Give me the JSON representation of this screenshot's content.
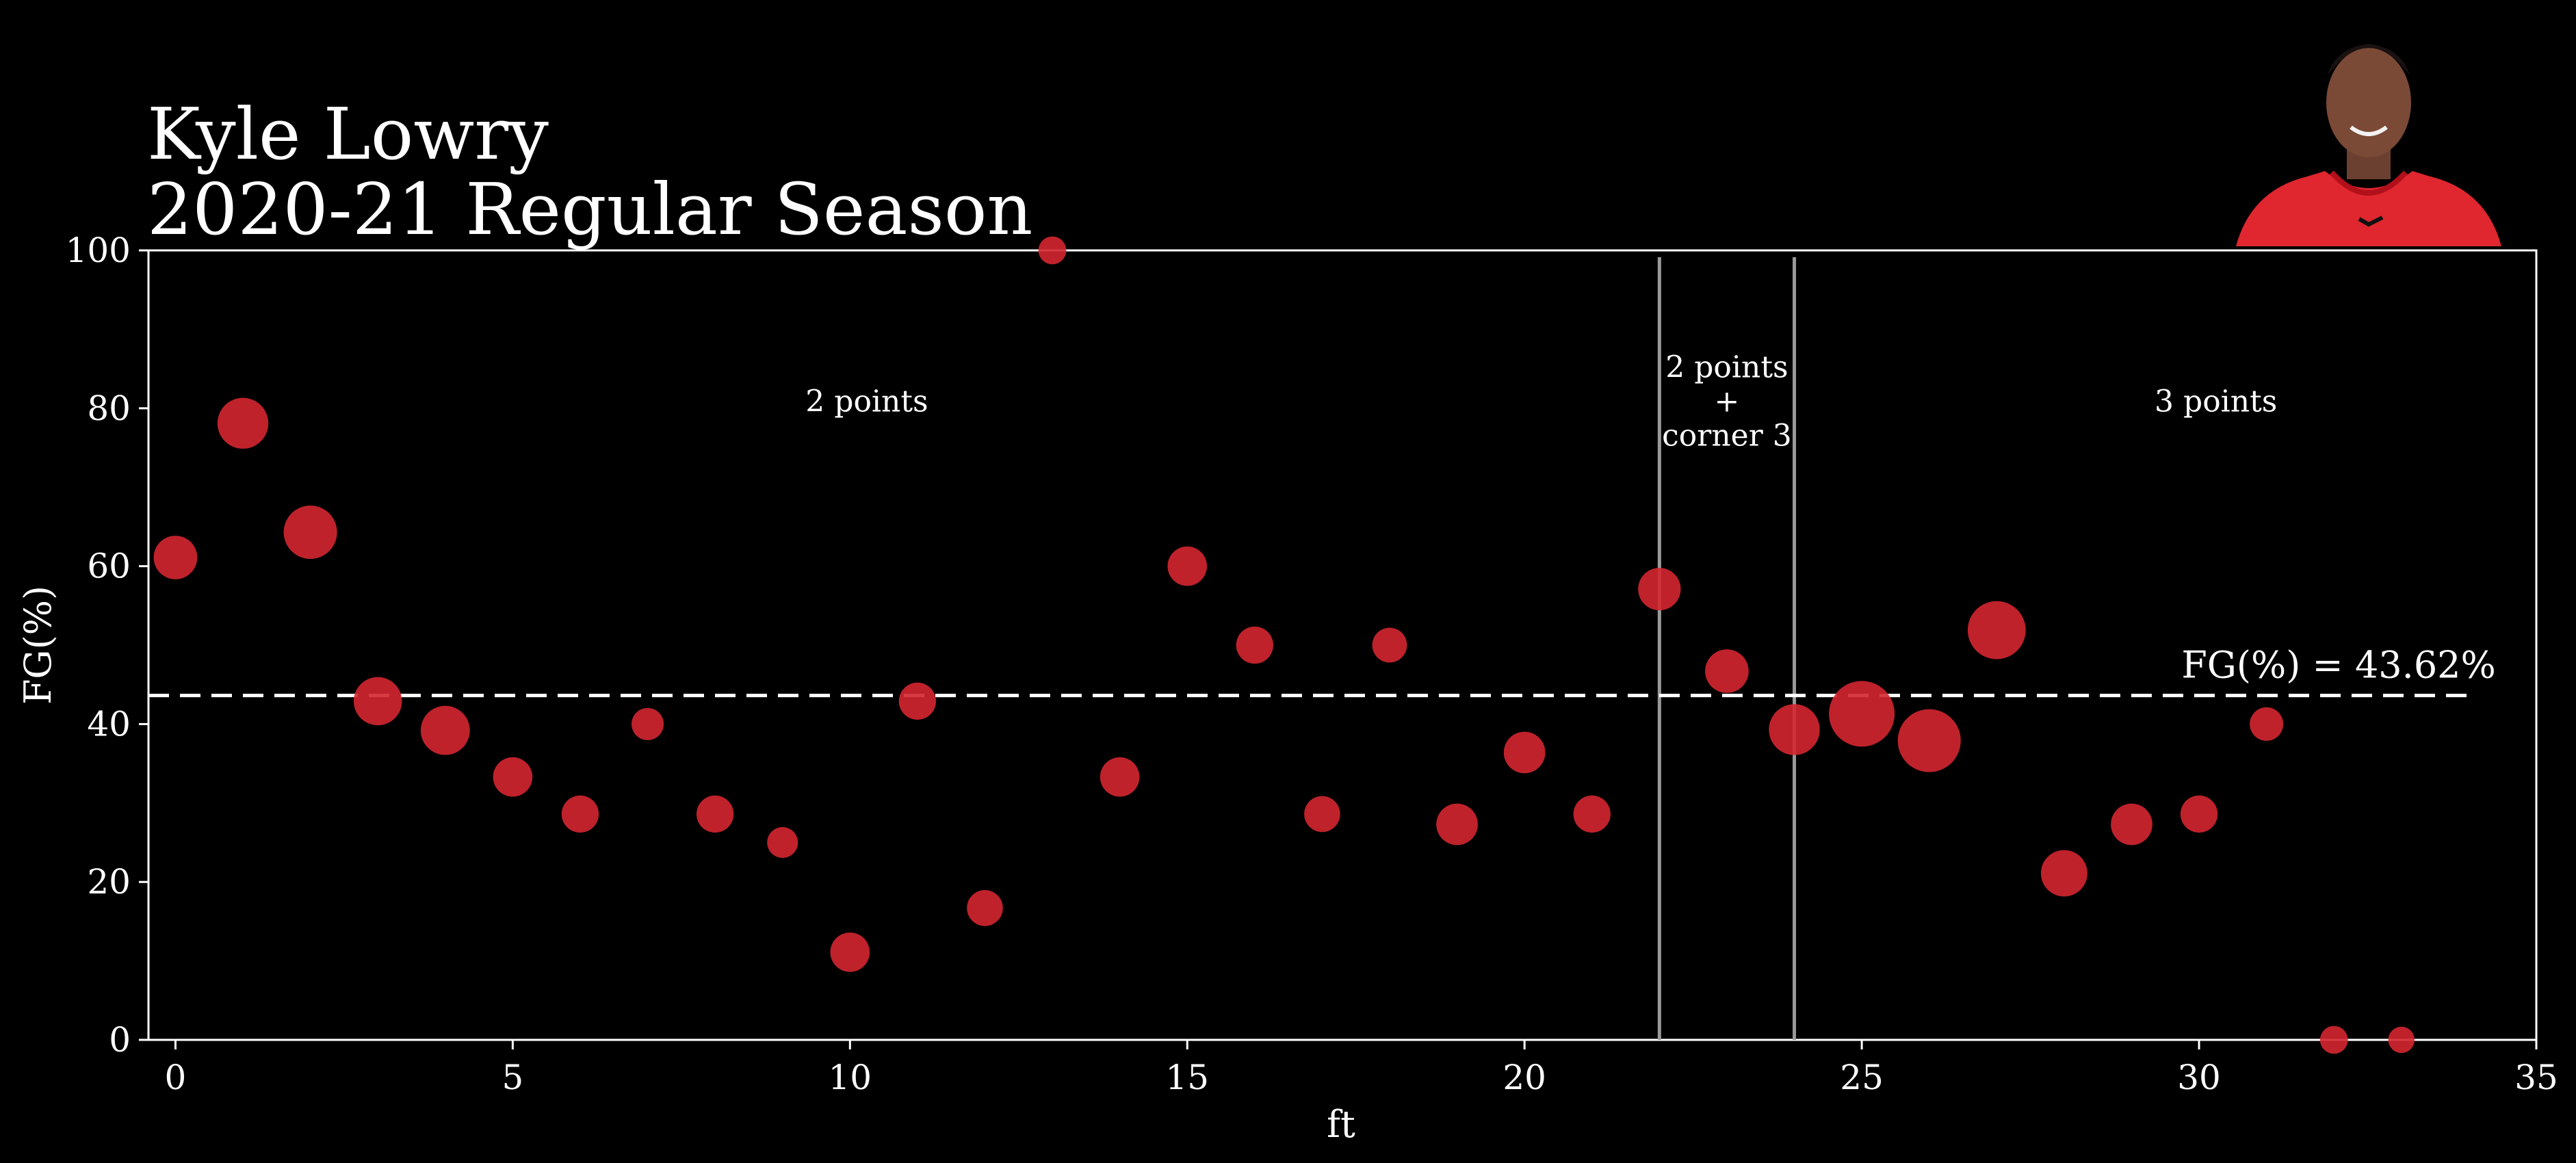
{
  "chart_data": {
    "type": "scatter",
    "title_line1": "Kyle Lowry",
    "title_line2": "2020-21 Regular Season",
    "xlabel": "ft",
    "ylabel": "FG(%)",
    "xlim": [
      -0.4,
      35
    ],
    "ylim": [
      0,
      100
    ],
    "x_ticks": [
      0,
      5,
      10,
      15,
      20,
      25,
      30,
      35
    ],
    "y_ticks": [
      0,
      20,
      40,
      60,
      80,
      100
    ],
    "grid": false,
    "average": {
      "value": 43.62,
      "label": "FG(%) = 43.62%",
      "x_range": [
        -0.4,
        34
      ]
    },
    "zone_lines": [
      22,
      24
    ],
    "zone_labels": [
      {
        "lines": [
          "2 points"
        ],
        "x": 10.25,
        "y": 81
      },
      {
        "lines": [
          "2 points",
          "+",
          "corner 3"
        ],
        "x": 23,
        "y": 81
      },
      {
        "lines": [
          "3 points"
        ],
        "x": 30.25,
        "y": 81
      }
    ],
    "marker_color": "#d42630",
    "points": [
      {
        "x": 0,
        "y": 61.1,
        "size": 0.44
      },
      {
        "x": 1,
        "y": 78.1,
        "size": 0.6
      },
      {
        "x": 2,
        "y": 64.3,
        "size": 0.66
      },
      {
        "x": 3,
        "y": 42.9,
        "size": 0.54
      },
      {
        "x": 4,
        "y": 39.2,
        "size": 0.56
      },
      {
        "x": 5,
        "y": 33.3,
        "size": 0.36
      },
      {
        "x": 6,
        "y": 28.6,
        "size": 0.32
      },
      {
        "x": 7,
        "y": 40.0,
        "size": 0.24
      },
      {
        "x": 8,
        "y": 28.6,
        "size": 0.32
      },
      {
        "x": 9,
        "y": 25.0,
        "size": 0.22
      },
      {
        "x": 10,
        "y": 11.1,
        "size": 0.36
      },
      {
        "x": 11,
        "y": 42.9,
        "size": 0.32
      },
      {
        "x": 12,
        "y": 16.7,
        "size": 0.3
      },
      {
        "x": 13,
        "y": 100.0,
        "size": 0.18
      },
      {
        "x": 14,
        "y": 33.3,
        "size": 0.36
      },
      {
        "x": 15,
        "y": 60.0,
        "size": 0.36
      },
      {
        "x": 16,
        "y": 50.0,
        "size": 0.32
      },
      {
        "x": 17,
        "y": 28.6,
        "size": 0.3
      },
      {
        "x": 18,
        "y": 50.0,
        "size": 0.28
      },
      {
        "x": 19,
        "y": 27.3,
        "size": 0.4
      },
      {
        "x": 20,
        "y": 36.4,
        "size": 0.4
      },
      {
        "x": 21,
        "y": 28.6,
        "size": 0.32
      },
      {
        "x": 22,
        "y": 57.1,
        "size": 0.42
      },
      {
        "x": 23,
        "y": 46.7,
        "size": 0.44
      },
      {
        "x": 24,
        "y": 39.3,
        "size": 0.6
      },
      {
        "x": 25,
        "y": 41.3,
        "size": 1.0
      },
      {
        "x": 26,
        "y": 37.9,
        "size": 0.92
      },
      {
        "x": 27,
        "y": 51.9,
        "size": 0.78
      },
      {
        "x": 28,
        "y": 21.1,
        "size": 0.5
      },
      {
        "x": 29,
        "y": 27.3,
        "size": 0.4
      },
      {
        "x": 30,
        "y": 28.6,
        "size": 0.32
      },
      {
        "x": 31,
        "y": 40.0,
        "size": 0.26
      },
      {
        "x": 32,
        "y": 0.0,
        "size": 0.18
      },
      {
        "x": 33,
        "y": 0.0,
        "size": 0.16
      }
    ]
  },
  "player_photo": {
    "icon": "player-headshot-icon",
    "jersey_color": "#e0262e"
  }
}
